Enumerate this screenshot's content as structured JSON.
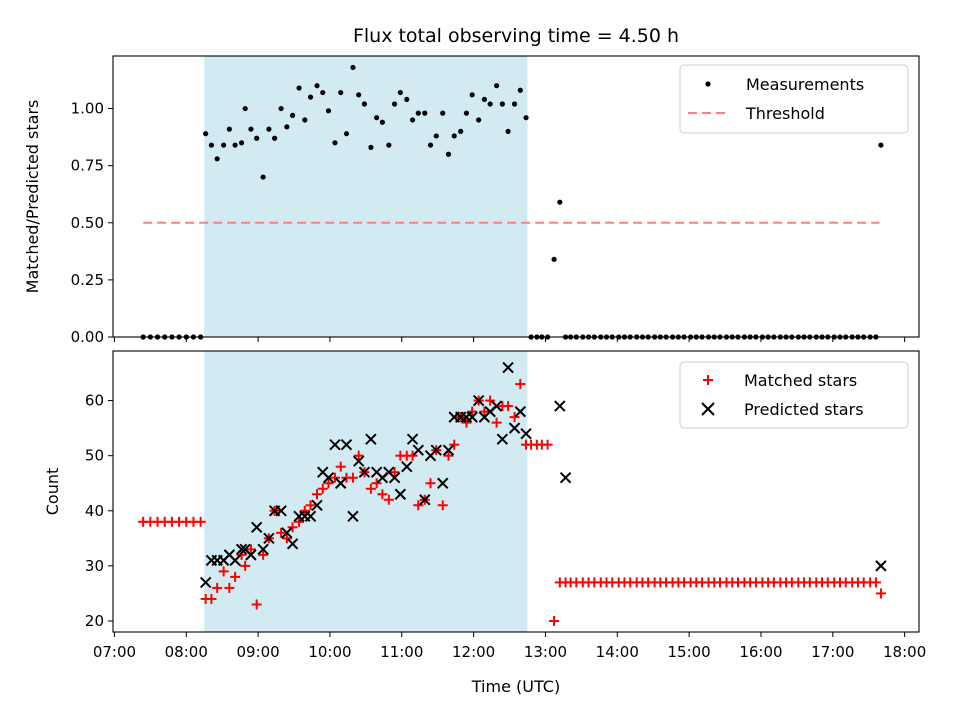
{
  "chart_data": {
    "title": "Flux total observing time = 4.50 h",
    "xlabel": "Time (UTC)",
    "x_ticks": [
      "07:00",
      "08:00",
      "09:00",
      "10:00",
      "11:00",
      "12:00",
      "13:00",
      "14:00",
      "15:00",
      "16:00",
      "17:00",
      "18:00"
    ],
    "xlim_hours": [
      6.98,
      18.2
    ],
    "shaded_span_hours": [
      8.25,
      12.75
    ],
    "colors": {
      "shade": "#add8e6",
      "threshold": "#ff7f7f",
      "matched": "#ff0000",
      "predicted": "#000000",
      "measurement": "#000000"
    },
    "panels": [
      {
        "type": "scatter",
        "ylabel": "Matched/Predicted stars",
        "ylim": [
          0,
          1.23
        ],
        "y_ticks": [
          "0.00",
          "0.25",
          "0.50",
          "0.75",
          "1.00"
        ],
        "legend_position": "top-right",
        "threshold": {
          "name": "Threshold",
          "value": 0.5,
          "x": [
            7.4,
            17.65
          ]
        },
        "series": [
          {
            "name": "Measurements",
            "x": [
              7.4,
              7.5,
              7.6,
              7.7,
              7.8,
              7.9,
              8.0,
              8.1,
              8.2,
              8.27,
              8.35,
              8.43,
              8.52,
              8.6,
              8.68,
              8.77,
              8.82,
              8.9,
              8.98,
              9.07,
              9.15,
              9.23,
              9.32,
              9.4,
              9.48,
              9.57,
              9.65,
              9.73,
              9.82,
              9.9,
              9.98,
              10.07,
              10.15,
              10.23,
              10.32,
              10.4,
              10.48,
              10.57,
              10.65,
              10.73,
              10.82,
              10.9,
              10.98,
              11.07,
              11.15,
              11.23,
              11.32,
              11.4,
              11.48,
              11.57,
              11.65,
              11.73,
              11.82,
              11.9,
              11.98,
              12.07,
              12.15,
              12.23,
              12.32,
              12.4,
              12.48,
              12.57,
              12.65,
              12.73,
              12.8,
              12.88,
              12.95,
              13.03,
              13.12,
              13.2,
              13.28,
              13.35,
              13.43,
              13.52,
              13.6,
              13.68,
              13.77,
              13.85,
              13.93,
              14.02,
              14.1,
              14.18,
              14.27,
              14.35,
              14.43,
              14.52,
              14.6,
              14.68,
              14.77,
              14.85,
              14.93,
              15.02,
              15.1,
              15.18,
              15.27,
              15.35,
              15.43,
              15.52,
              15.6,
              15.68,
              15.77,
              15.85,
              15.93,
              16.02,
              16.1,
              16.18,
              16.27,
              16.35,
              16.43,
              16.52,
              16.6,
              16.68,
              16.77,
              16.85,
              16.93,
              17.02,
              17.1,
              17.18,
              17.27,
              17.35,
              17.43,
              17.52,
              17.6,
              17.67
            ],
            "y": [
              0,
              0,
              0,
              0,
              0,
              0,
              0,
              0,
              0,
              0.89,
              0.84,
              0.78,
              0.84,
              0.91,
              0.84,
              0.85,
              1.0,
              0.91,
              0.87,
              0.7,
              0.91,
              0.87,
              1.0,
              0.92,
              0.97,
              1.09,
              0.95,
              1.05,
              1.1,
              1.07,
              0.99,
              0.85,
              1.07,
              0.89,
              1.18,
              1.06,
              1.02,
              0.83,
              0.96,
              0.94,
              0.84,
              1.02,
              1.07,
              1.04,
              0.95,
              0.98,
              0.98,
              0.84,
              0.88,
              0.98,
              0.8,
              0.88,
              0.9,
              0.98,
              1.06,
              0.95,
              1.04,
              1.02,
              1.1,
              1.02,
              0.9,
              1.02,
              1.08,
              0.96,
              0,
              0,
              0,
              0,
              0.34,
              0.59,
              0,
              0,
              0,
              0,
              0,
              0,
              0,
              0,
              0,
              0,
              0,
              0,
              0,
              0,
              0,
              0,
              0,
              0,
              0,
              0,
              0,
              0,
              0,
              0,
              0,
              0,
              0,
              0,
              0,
              0,
              0,
              0,
              0,
              0,
              0,
              0,
              0,
              0,
              0,
              0,
              0,
              0,
              0,
              0,
              0,
              0,
              0,
              0,
              0,
              0,
              0,
              0,
              0,
              0.84
            ]
          }
        ]
      },
      {
        "type": "scatter",
        "ylabel": "Count",
        "ylim": [
          18,
          69
        ],
        "y_ticks": [
          "20",
          "30",
          "40",
          "50",
          "60"
        ],
        "legend_position": "top-right",
        "series": [
          {
            "name": "Matched stars",
            "marker": "plus",
            "x": [
              7.4,
              7.5,
              7.6,
              7.7,
              7.8,
              7.9,
              8.0,
              8.1,
              8.2,
              8.27,
              8.35,
              8.43,
              8.52,
              8.6,
              8.68,
              8.77,
              8.82,
              8.9,
              8.98,
              9.07,
              9.15,
              9.23,
              9.32,
              9.4,
              9.48,
              9.57,
              9.65,
              9.73,
              9.82,
              9.9,
              9.98,
              10.07,
              10.15,
              10.23,
              10.32,
              10.4,
              10.48,
              10.57,
              10.65,
              10.73,
              10.82,
              10.9,
              10.98,
              11.07,
              11.15,
              11.23,
              11.32,
              11.4,
              11.48,
              11.57,
              11.65,
              11.73,
              11.82,
              11.9,
              11.98,
              12.07,
              12.15,
              12.23,
              12.32,
              12.4,
              12.48,
              12.57,
              12.65,
              12.73,
              12.8,
              12.88,
              12.95,
              13.03,
              13.12,
              13.2,
              13.28,
              13.35,
              13.43,
              13.52,
              13.6,
              13.68,
              13.77,
              13.85,
              13.93,
              14.02,
              14.1,
              14.18,
              14.27,
              14.35,
              14.43,
              14.52,
              14.6,
              14.68,
              14.77,
              14.85,
              14.93,
              15.02,
              15.1,
              15.18,
              15.27,
              15.35,
              15.43,
              15.52,
              15.6,
              15.68,
              15.77,
              15.85,
              15.93,
              16.02,
              16.1,
              16.18,
              16.27,
              16.35,
              16.43,
              16.52,
              16.6,
              16.68,
              16.77,
              16.85,
              16.93,
              17.02,
              17.1,
              17.18,
              17.27,
              17.35,
              17.43,
              17.52,
              17.6,
              17.67
            ],
            "y": [
              38,
              38,
              38,
              38,
              38,
              38,
              38,
              38,
              38,
              24,
              24,
              26,
              29,
              26,
              28,
              32,
              30,
              33,
              23,
              32,
              35,
              40,
              36,
              35,
              37,
              38,
              40,
              41,
              43,
              44,
              45,
              46,
              48,
              46,
              46,
              50,
              47,
              44,
              45,
              43,
              42,
              47,
              50,
              50,
              50,
              41,
              42,
              45,
              51,
              41,
              50,
              52,
              57,
              56,
              58,
              60,
              58,
              60,
              56,
              59,
              59,
              57,
              63,
              52,
              52,
              52,
              52,
              52,
              20,
              27,
              27,
              27,
              27,
              27,
              27,
              27,
              27,
              27,
              27,
              27,
              27,
              27,
              27,
              27,
              27,
              27,
              27,
              27,
              27,
              27,
              27,
              27,
              27,
              27,
              27,
              27,
              27,
              27,
              27,
              27,
              27,
              27,
              27,
              27,
              27,
              27,
              27,
              27,
              27,
              27,
              27,
              27,
              27,
              27,
              27,
              27,
              27,
              27,
              27,
              27,
              27,
              27,
              27,
              25
            ]
          },
          {
            "name": "Predicted stars",
            "marker": "x",
            "x": [
              8.27,
              8.35,
              8.43,
              8.52,
              8.6,
              8.68,
              8.77,
              8.82,
              8.9,
              8.98,
              9.07,
              9.15,
              9.23,
              9.32,
              9.4,
              9.48,
              9.57,
              9.65,
              9.73,
              9.82,
              9.9,
              9.98,
              10.07,
              10.15,
              10.23,
              10.32,
              10.4,
              10.48,
              10.57,
              10.65,
              10.73,
              10.82,
              10.9,
              10.98,
              11.07,
              11.15,
              11.23,
              11.32,
              11.4,
              11.48,
              11.57,
              11.65,
              11.73,
              11.82,
              11.9,
              11.98,
              12.07,
              12.15,
              12.23,
              12.32,
              12.4,
              12.48,
              12.57,
              12.65,
              12.73,
              13.2,
              13.28,
              17.67
            ],
            "y": [
              27,
              31,
              31,
              31,
              32,
              31,
              33,
              33,
              32,
              37,
              33,
              35,
              40,
              40,
              36,
              34,
              39,
              39,
              39,
              41,
              47,
              46,
              52,
              45,
              52,
              39,
              49,
              47,
              53,
              47,
              46,
              47,
              46,
              43,
              48,
              53,
              51,
              42,
              50,
              51,
              45,
              51,
              57,
              57,
              57,
              57,
              60,
              57,
              58,
              59,
              53,
              66,
              55,
              58,
              54,
              59,
              46,
              30
            ]
          }
        ]
      }
    ],
    "legend": {
      "measurements": "Measurements",
      "threshold": "Threshold",
      "matched": "Matched stars",
      "predicted": "Predicted stars"
    }
  }
}
